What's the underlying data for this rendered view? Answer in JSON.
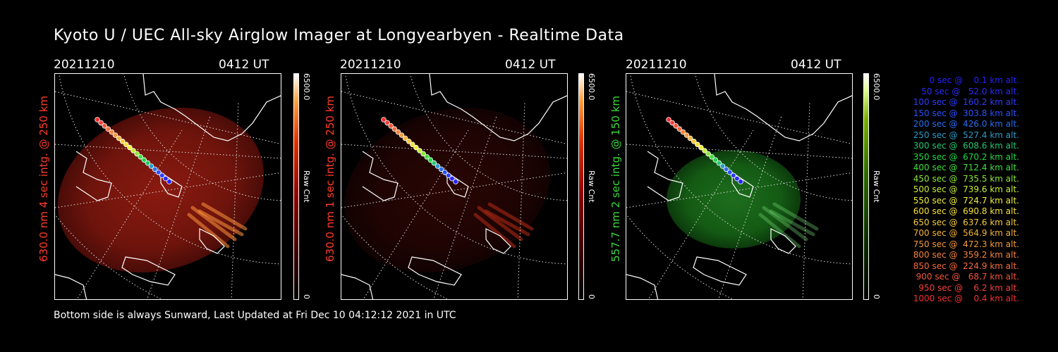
{
  "title": "Kyoto U / UEC All-sky Airglow Imager at Longyearbyen - Realtime Data",
  "footer": "Bottom side is always Sunward, Last Updated at Fri Dec 10 04:12:12 2021 in UTC",
  "panels": [
    {
      "date": "20211210",
      "time": "0412 UT",
      "ylabel": "630.0 nm 4 sec intg. @ 250 km",
      "ylabel_color": "#ff3b2a",
      "cbar_max": "6500.0",
      "cbar_unit": "Raw Cnt",
      "cbar_min": "0",
      "colormap": "red"
    },
    {
      "date": "20211210",
      "time": "0412 UT",
      "ylabel": "630.0 nm 1 sec intg. @ 250 km",
      "ylabel_color": "#ff3b2a",
      "cbar_max": "6500.0",
      "cbar_unit": "Raw Cnt",
      "cbar_min": "0",
      "colormap": "red"
    },
    {
      "date": "20211210",
      "time": "0412 UT",
      "ylabel": "557.7 nm 2 sec intg. @ 150 km",
      "ylabel_color": "#3dd93d",
      "cbar_max": "6500.0",
      "cbar_unit": "Raw Cnt",
      "cbar_min": "0",
      "colormap": "green"
    }
  ],
  "legend": [
    {
      "text": "0 sec @    0.1 km alt.",
      "color": "#2323ff"
    },
    {
      "text": "50 sec @   52.0 km alt.",
      "color": "#2b2bff"
    },
    {
      "text": "100 sec @  160.2 km alt.",
      "color": "#2e3cff"
    },
    {
      "text": "150 sec @  303.8 km alt.",
      "color": "#2a52ff"
    },
    {
      "text": "200 sec @  426.0 km alt.",
      "color": "#2a6ef0"
    },
    {
      "text": "250 sec @  527.4 km alt.",
      "color": "#2a9bc8"
    },
    {
      "text": "300 sec @  608.6 km alt.",
      "color": "#22c873"
    },
    {
      "text": "350 sec @  670.2 km alt.",
      "color": "#22d845"
    },
    {
      "text": "400 sec @  712.4 km alt.",
      "color": "#3ee03c"
    },
    {
      "text": "450 sec @  735.5 km alt.",
      "color": "#8ce63a"
    },
    {
      "text": "500 sec @  739.6 km alt.",
      "color": "#c6ee38"
    },
    {
      "text": "550 sec @  724.7 km alt.",
      "color": "#f0f038"
    },
    {
      "text": "600 sec @  690.8 km alt.",
      "color": "#f5e23a"
    },
    {
      "text": "650 sec @  637.6 km alt.",
      "color": "#f5cc3a"
    },
    {
      "text": "700 sec @  564.9 km alt.",
      "color": "#f5b43a"
    },
    {
      "text": "750 sec @  472.3 km alt.",
      "color": "#f59c3a"
    },
    {
      "text": "800 sec @  359.2 km alt.",
      "color": "#f5843a"
    },
    {
      "text": "850 sec @  224.9 km alt.",
      "color": "#f56c3a"
    },
    {
      "text": "900 sec @   68.7 km alt.",
      "color": "#f5543a"
    },
    {
      "text": "950 sec @    6.2 km alt.",
      "color": "#f5403a"
    },
    {
      "text": "1000 sec @    0.4 km alt.",
      "color": "#f53030"
    }
  ]
}
